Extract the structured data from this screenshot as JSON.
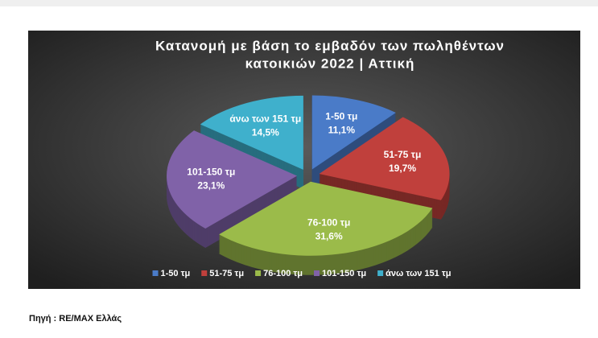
{
  "chart_data": {
    "type": "pie",
    "title": [
      "Κατανομή με βάση το εμβαδόν των πωληθέντων",
      "κατοικιών 2022 | Αττική"
    ],
    "categories": [
      "1-50 τμ",
      "51-75 τμ",
      "76-100 τμ",
      "101-150 τμ",
      "άνω των 151 τμ"
    ],
    "values": [
      11.1,
      19.7,
      31.6,
      23.1,
      14.5
    ],
    "value_labels": [
      "11,1%",
      "19,7%",
      "31,6%",
      "23,1%",
      "14,5%"
    ],
    "colors": [
      "#4a7bc8",
      "#c0403c",
      "#9bbb4a",
      "#8062a8",
      "#3fb0cc"
    ]
  },
  "source": "Πηγή : RE/MAX Ελλάς"
}
